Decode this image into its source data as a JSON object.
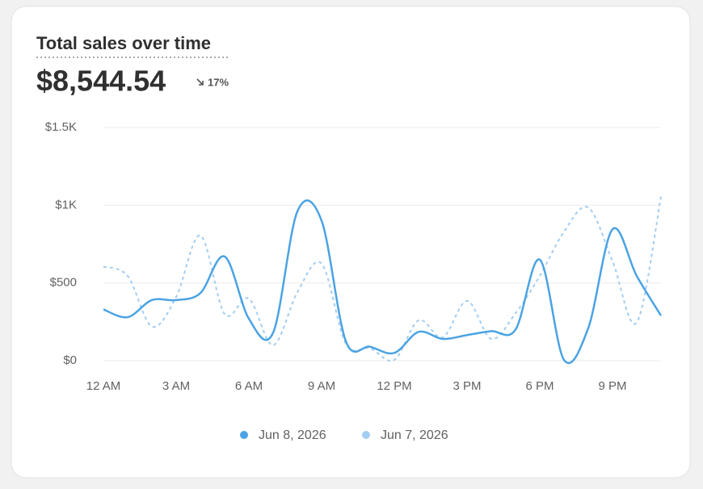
{
  "chart_data": {
    "type": "line",
    "title": "Total sales over time",
    "total_value": "$8,544.54",
    "change": "17%",
    "categories": [
      "12 AM",
      null,
      null,
      "3 AM",
      null,
      null,
      "6 AM",
      null,
      null,
      "9 AM",
      null,
      null,
      "12 PM",
      null,
      null,
      "3 PM",
      null,
      null,
      "6 PM",
      null,
      null,
      "9 PM",
      null,
      null
    ],
    "series": [
      {
        "name": "Jun 8, 2026",
        "color": "#4ba3e3",
        "line_style": "solid",
        "values": [
          330,
          280,
          390,
          390,
          435,
          670,
          270,
          180,
          960,
          900,
          125,
          90,
          50,
          185,
          140,
          165,
          190,
          200,
          650,
          5,
          210,
          845,
          545,
          290
        ]
      },
      {
        "name": "Jun 7, 2026",
        "color": "#a3cdf0",
        "line_style": "dashed",
        "values": [
          605,
          545,
          220,
          410,
          805,
          300,
          400,
          100,
          440,
          625,
          110,
          80,
          5,
          260,
          150,
          385,
          140,
          305,
          545,
          830,
          985,
          640,
          245,
          1055
        ]
      }
    ],
    "ylim": [
      0,
      1500
    ],
    "yticks": [
      {
        "value": 0,
        "label": "$0"
      },
      {
        "value": 500,
        "label": "$500"
      },
      {
        "value": 1000,
        "label": "$1K"
      },
      {
        "value": 1500,
        "label": "$1.5K"
      }
    ],
    "grid": true,
    "legend": "bottom"
  }
}
